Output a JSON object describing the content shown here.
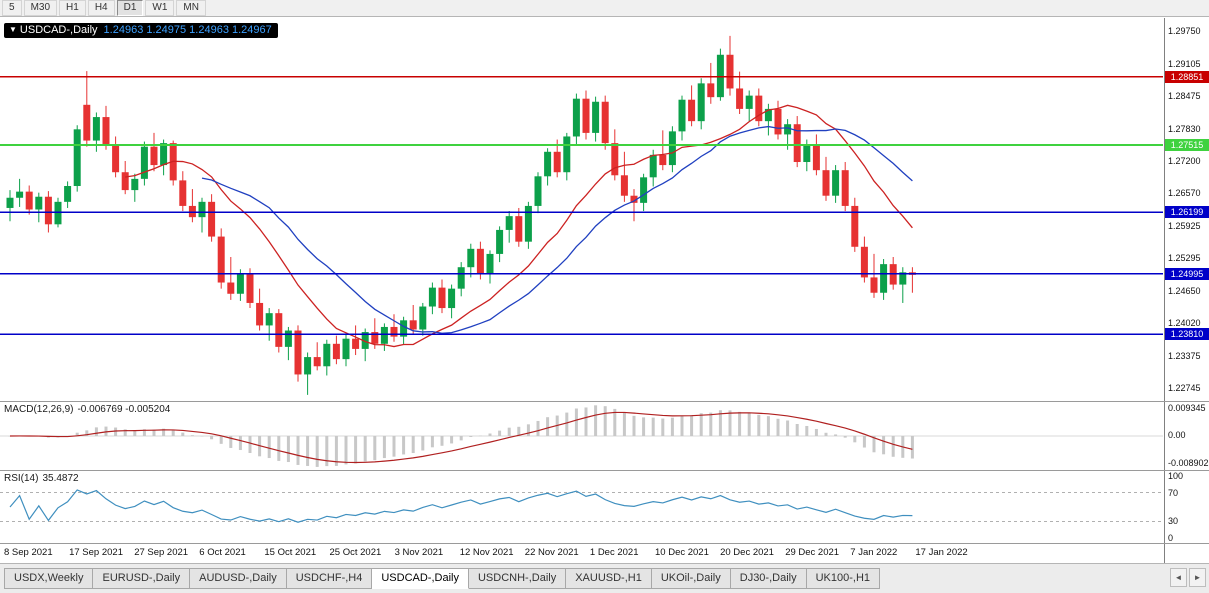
{
  "toolbar": {
    "timeframes": [
      "5",
      "M30",
      "H1",
      "H4",
      "D1",
      "W1",
      "MN"
    ],
    "active": "D1"
  },
  "chart": {
    "title": "USDCAD-,Daily",
    "ohlc_values": "1.24963 1.24975 1.24963 1.24967",
    "dropdown_arrow": "▼"
  },
  "macd": {
    "label": "MACD(12,26,9)",
    "values": "-0.006769 -0.005204",
    "ticks": [
      "0.009345",
      "0.00",
      "-0.008902"
    ]
  },
  "rsi": {
    "label": "RSI(14)",
    "value": "35.4872",
    "ticks": [
      100,
      70,
      30,
      0
    ],
    "levels": [
      70,
      30
    ]
  },
  "tabs": {
    "items": [
      "USDX,Weekly",
      "EURUSD-,Daily",
      "AUDUSD-,Daily",
      "USDCHF-,H4",
      "USDCAD-,Daily",
      "USDCNH-,Daily",
      "XAUUSD-,H1",
      "UKOil-,Daily",
      "DJ30-,Daily",
      "UK100-,H1"
    ],
    "active_index": 4,
    "scroll_left": "◄",
    "scroll_right": "►"
  },
  "chart_data": {
    "type": "candlestick",
    "symbol": "USDCAD-,Daily",
    "price_range": [
      1.225,
      1.3
    ],
    "colors": {
      "bull": "#0ca04a",
      "bear": "#e63232",
      "ma_fast": "#cc2222",
      "ma_slow": "#2040c0",
      "macd_bar": "#c8c8c8",
      "macd_signal": "#b02020",
      "rsi_line": "#3f8fbf"
    },
    "ma": [
      {
        "name": "fast",
        "period": 13,
        "color": "#cc2222"
      },
      {
        "name": "slow",
        "period": 21,
        "color": "#2040c0"
      }
    ],
    "y_ticks": [
      "1.29750",
      "1.29105",
      "1.28475",
      "1.27830",
      "1.27200",
      "1.26570",
      "1.25925",
      "1.25295",
      "1.24650",
      "1.24020",
      "1.23375",
      "1.22745"
    ],
    "hlines": [
      {
        "price": 1.28851,
        "label": "1.28851",
        "color": "#c80000",
        "width": 1.4
      },
      {
        "price": 1.27515,
        "label": "1.27515",
        "color": "#3fd23f",
        "width": 2
      },
      {
        "price": 1.26199,
        "label": "1.26199",
        "color": "#0000c8",
        "width": 1.6
      },
      {
        "price": 1.24995,
        "label": "1.24995",
        "color": "#0000c8",
        "width": 1.6
      },
      {
        "price": 1.2381,
        "label": "1.23810",
        "color": "#0000c8",
        "width": 1.6
      }
    ],
    "x_labels": [
      "8 Sep 2021",
      "17 Sep 2021",
      "27 Sep 2021",
      "6 Oct 2021",
      "15 Oct 2021",
      "25 Oct 2021",
      "3 Nov 2021",
      "12 Nov 2021",
      "22 Nov 2021",
      "1 Dec 2021",
      "10 Dec 2021",
      "20 Dec 2021",
      "29 Dec 2021",
      "7 Jan 2022",
      "17 Jan 2022"
    ],
    "candles": [
      [
        1.2628,
        1.2663,
        1.2602,
        1.2648
      ],
      [
        1.2648,
        1.2685,
        1.263,
        1.266
      ],
      [
        1.266,
        1.2672,
        1.2615,
        1.2625
      ],
      [
        1.2625,
        1.2658,
        1.26,
        1.265
      ],
      [
        1.265,
        1.2661,
        1.258,
        1.2596
      ],
      [
        1.2596,
        1.2648,
        1.259,
        1.264
      ],
      [
        1.264,
        1.268,
        1.2628,
        1.2671
      ],
      [
        1.2671,
        1.279,
        1.266,
        1.2782
      ],
      [
        1.283,
        1.2896,
        1.2748,
        1.276
      ],
      [
        1.276,
        1.2815,
        1.2738,
        1.2806
      ],
      [
        1.2806,
        1.2828,
        1.2742,
        1.2752
      ],
      [
        1.2752,
        1.2768,
        1.2688,
        1.2698
      ],
      [
        1.2698,
        1.272,
        1.2655,
        1.2663
      ],
      [
        1.2663,
        1.2695,
        1.264,
        1.2685
      ],
      [
        1.2685,
        1.2758,
        1.2672,
        1.2748
      ],
      [
        1.2748,
        1.2775,
        1.27,
        1.2712
      ],
      [
        1.2712,
        1.2762,
        1.2692,
        1.2755
      ],
      [
        1.2755,
        1.276,
        1.2672,
        1.2682
      ],
      [
        1.2682,
        1.27,
        1.2622,
        1.2632
      ],
      [
        1.2632,
        1.2665,
        1.26,
        1.261
      ],
      [
        1.261,
        1.2648,
        1.258,
        1.264
      ],
      [
        1.264,
        1.2655,
        1.2562,
        1.2572
      ],
      [
        1.2572,
        1.2588,
        1.247,
        1.2482
      ],
      [
        1.2482,
        1.2532,
        1.2448,
        1.246
      ],
      [
        1.246,
        1.2508,
        1.2446,
        1.2498
      ],
      [
        1.2498,
        1.251,
        1.2432,
        1.2442
      ],
      [
        1.2442,
        1.247,
        1.2388,
        1.2398
      ],
      [
        1.2398,
        1.2432,
        1.2368,
        1.2422
      ],
      [
        1.2422,
        1.243,
        1.2345,
        1.2356
      ],
      [
        1.2356,
        1.2395,
        1.233,
        1.2388
      ],
      [
        1.2388,
        1.2398,
        1.2288,
        1.2302
      ],
      [
        1.2302,
        1.2345,
        1.2262,
        1.2336
      ],
      [
        1.2336,
        1.2365,
        1.231,
        1.2318
      ],
      [
        1.2318,
        1.237,
        1.23,
        1.2362
      ],
      [
        1.2362,
        1.2378,
        1.2322,
        1.2332
      ],
      [
        1.2332,
        1.238,
        1.2318,
        1.2372
      ],
      [
        1.2372,
        1.2398,
        1.234,
        1.2352
      ],
      [
        1.2352,
        1.2392,
        1.2328,
        1.2385
      ],
      [
        1.2385,
        1.2412,
        1.2352,
        1.2362
      ],
      [
        1.2362,
        1.2402,
        1.2348,
        1.2395
      ],
      [
        1.2395,
        1.242,
        1.2366,
        1.2376
      ],
      [
        1.2376,
        1.2415,
        1.236,
        1.2408
      ],
      [
        1.2408,
        1.2438,
        1.238,
        1.239
      ],
      [
        1.239,
        1.2442,
        1.2378,
        1.2435
      ],
      [
        1.2435,
        1.2482,
        1.242,
        1.2472
      ],
      [
        1.2472,
        1.2488,
        1.2422,
        1.2432
      ],
      [
        1.2432,
        1.2478,
        1.2412,
        1.247
      ],
      [
        1.247,
        1.2522,
        1.2455,
        1.2512
      ],
      [
        1.2512,
        1.2558,
        1.2492,
        1.2548
      ],
      [
        1.2548,
        1.2562,
        1.2488,
        1.2498
      ],
      [
        1.2498,
        1.2545,
        1.248,
        1.2538
      ],
      [
        1.2538,
        1.2592,
        1.2522,
        1.2585
      ],
      [
        1.2585,
        1.2622,
        1.256,
        1.2612
      ],
      [
        1.2612,
        1.2628,
        1.2552,
        1.2562
      ],
      [
        1.2562,
        1.264,
        1.2548,
        1.2632
      ],
      [
        1.2632,
        1.2698,
        1.2618,
        1.269
      ],
      [
        1.269,
        1.2745,
        1.2672,
        1.2738
      ],
      [
        1.2738,
        1.2762,
        1.2688,
        1.2698
      ],
      [
        1.2698,
        1.2775,
        1.2682,
        1.2768
      ],
      [
        1.2768,
        1.2852,
        1.275,
        1.2842
      ],
      [
        1.2842,
        1.2858,
        1.2762,
        1.2775
      ],
      [
        1.2775,
        1.2846,
        1.2758,
        1.2836
      ],
      [
        1.2836,
        1.2848,
        1.2742,
        1.2755
      ],
      [
        1.2755,
        1.2782,
        1.2682,
        1.2692
      ],
      [
        1.2692,
        1.2738,
        1.264,
        1.2652
      ],
      [
        1.2652,
        1.2665,
        1.2602,
        1.2638
      ],
      [
        1.2638,
        1.2695,
        1.2622,
        1.2688
      ],
      [
        1.2688,
        1.2742,
        1.267,
        1.2732
      ],
      [
        1.2732,
        1.278,
        1.2702,
        1.2712
      ],
      [
        1.2712,
        1.2788,
        1.2698,
        1.2778
      ],
      [
        1.2778,
        1.2848,
        1.276,
        1.284
      ],
      [
        1.284,
        1.2868,
        1.2788,
        1.2798
      ],
      [
        1.2798,
        1.2882,
        1.2782,
        1.2872
      ],
      [
        1.2872,
        1.2912,
        1.2832,
        1.2845
      ],
      [
        1.2845,
        1.294,
        1.2838,
        1.2928
      ],
      [
        1.2928,
        1.2965,
        1.2848,
        1.2862
      ],
      [
        1.2862,
        1.2895,
        1.2812,
        1.2822
      ],
      [
        1.2822,
        1.2858,
        1.2798,
        1.2848
      ],
      [
        1.2848,
        1.2862,
        1.2788,
        1.2798
      ],
      [
        1.2798,
        1.2832,
        1.277,
        1.2822
      ],
      [
        1.2822,
        1.2838,
        1.2762,
        1.2772
      ],
      [
        1.2772,
        1.2802,
        1.2742,
        1.2792
      ],
      [
        1.2792,
        1.2808,
        1.2708,
        1.2718
      ],
      [
        1.2718,
        1.2762,
        1.27,
        1.2752
      ],
      [
        1.2752,
        1.2772,
        1.2692,
        1.2702
      ],
      [
        1.2702,
        1.2728,
        1.2642,
        1.2652
      ],
      [
        1.2652,
        1.2712,
        1.2638,
        1.2702
      ],
      [
        1.2702,
        1.2718,
        1.2622,
        1.2632
      ],
      [
        1.2632,
        1.2648,
        1.2542,
        1.2552
      ],
      [
        1.2552,
        1.2572,
        1.2482,
        1.2492
      ],
      [
        1.2492,
        1.2538,
        1.2452,
        1.2462
      ],
      [
        1.2462,
        1.2528,
        1.2448,
        1.2518
      ],
      [
        1.2518,
        1.2532,
        1.2468,
        1.2478
      ],
      [
        1.2478,
        1.2512,
        1.2442,
        1.2502
      ],
      [
        1.2502,
        1.2512,
        1.2462,
        1.2497
      ]
    ]
  }
}
